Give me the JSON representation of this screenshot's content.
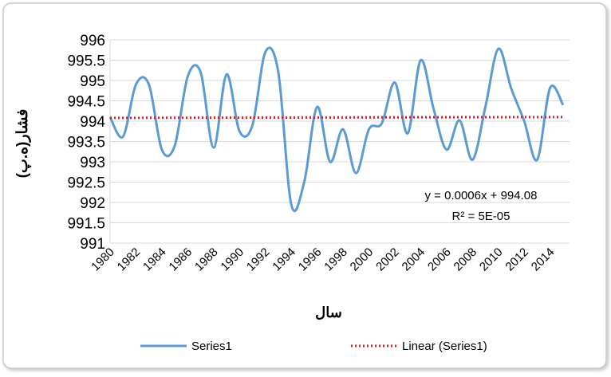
{
  "chart_data": {
    "type": "line",
    "xlabel": "سال",
    "ylabel": "فشار(ه.پ)",
    "ylim": [
      991,
      996
    ],
    "y_ticks": [
      "996",
      "995.5",
      "995",
      "994.5",
      "994",
      "993.5",
      "993",
      "992.5",
      "992",
      "991.5",
      "991"
    ],
    "x_ticks": [
      "1980",
      "1982",
      "1984",
      "1986",
      "1988",
      "1990",
      "1992",
      "1994",
      "1996",
      "1998",
      "2000",
      "2002",
      "2004",
      "2006",
      "2008",
      "2010",
      "2012",
      "2014"
    ],
    "x": [
      1980,
      1981,
      1982,
      1983,
      1984,
      1985,
      1986,
      1987,
      1988,
      1989,
      1990,
      1991,
      1992,
      1993,
      1994,
      1995,
      1996,
      1997,
      1998,
      1999,
      2000,
      2001,
      2002,
      2003,
      2004,
      2005,
      2006,
      2007,
      2008,
      2009,
      2010,
      2011,
      2012,
      2013,
      2014,
      2015
    ],
    "series": [
      {
        "name": "Series1",
        "values": [
          994.1,
          993.62,
          994.9,
          994.9,
          993.3,
          993.4,
          995.1,
          995.2,
          993.35,
          995.15,
          993.75,
          993.9,
          995.7,
          995.2,
          991.95,
          992.5,
          994.35,
          993.0,
          993.8,
          992.72,
          993.8,
          993.95,
          994.95,
          993.7,
          995.5,
          994.3,
          993.3,
          994.02,
          993.05,
          994.35,
          995.78,
          994.8,
          994.0,
          993.05,
          994.82,
          994.4
        ]
      }
    ],
    "trendline": {
      "name": "Linear (Series1)",
      "slope": 0.0006,
      "intercept": 994.08,
      "equation": "y = 0.0006x + 994.08",
      "r_squared": "R² = 5E-05"
    },
    "legend": {
      "position": "bottom",
      "entries": [
        "Series1",
        "Linear (Series1)"
      ]
    },
    "grid": true,
    "colors": {
      "series": "#5b9bd5",
      "trend": "#e0191d",
      "grid": "#d9d9d9"
    }
  }
}
